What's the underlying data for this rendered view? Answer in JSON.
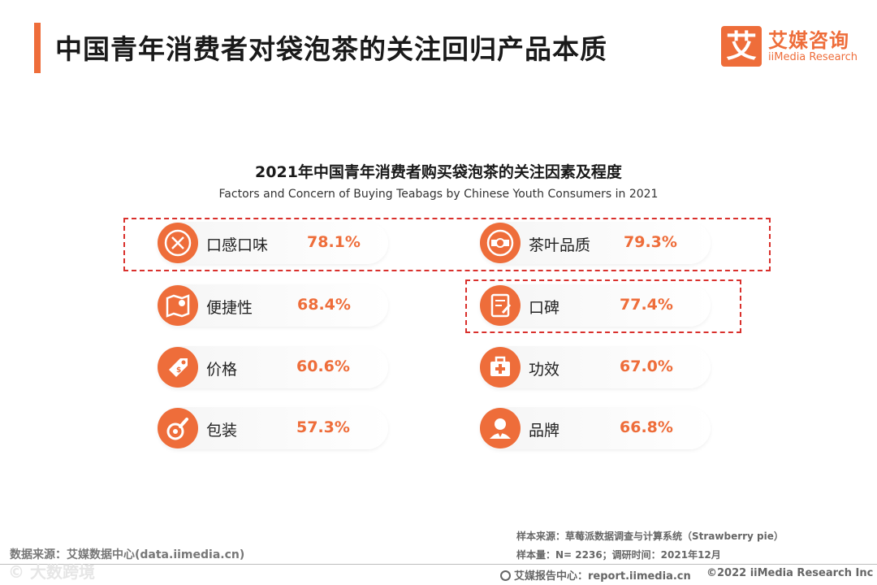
{
  "header": {
    "title": "中国青年消费者对袋泡茶的关注回归产品本质",
    "logo_cn": "艾媒咨询",
    "logo_mark": "艾",
    "logo_en": "iiMedia Research"
  },
  "chart_data": {
    "type": "table",
    "title": "2021年中国青年消费者购买袋泡茶的关注因素及程度",
    "subtitle": "Factors and Concern of Buying Teabags by Chinese Youth Consumers in 2021",
    "unit": "%",
    "items": [
      {
        "label": "口感口味",
        "value": 78.1,
        "display": "78.1%",
        "icon": "utensils-icon",
        "highlight": true
      },
      {
        "label": "茶叶品质",
        "value": 79.3,
        "display": "79.3%",
        "icon": "quality-badge-icon",
        "highlight": true
      },
      {
        "label": "便捷性",
        "value": 68.4,
        "display": "68.4%",
        "icon": "map-pin-icon",
        "highlight": false
      },
      {
        "label": "口碑",
        "value": 77.4,
        "display": "77.4%",
        "icon": "review-document-icon",
        "highlight": true
      },
      {
        "label": "价格",
        "value": 60.6,
        "display": "60.6%",
        "icon": "price-tag-icon",
        "highlight": false
      },
      {
        "label": "功效",
        "value": 67.0,
        "display": "67.0%",
        "icon": "medical-kit-icon",
        "highlight": false
      },
      {
        "label": "包装",
        "value": 57.3,
        "display": "57.3%",
        "icon": "packaging-icon",
        "highlight": false
      },
      {
        "label": "品牌",
        "value": 66.8,
        "display": "66.8%",
        "icon": "brand-person-icon",
        "highlight": false
      }
    ]
  },
  "footer": {
    "data_source": "数据来源：艾媒数据中心(data.iimedia.cn)",
    "sample_source": "样本来源：草莓派数据调查与计算系统（Strawberry pie）",
    "sample_size": "样本量：N= 2236；调研时间：2021年12月",
    "report_center": "艾媒报告中心：report.iimedia.cn",
    "copyright": "©2022  iiMedia Research  Inc",
    "watermark": "© 大数跨境"
  },
  "colors": {
    "accent": "#ee6d3a",
    "highlight_border": "#d9302c"
  }
}
